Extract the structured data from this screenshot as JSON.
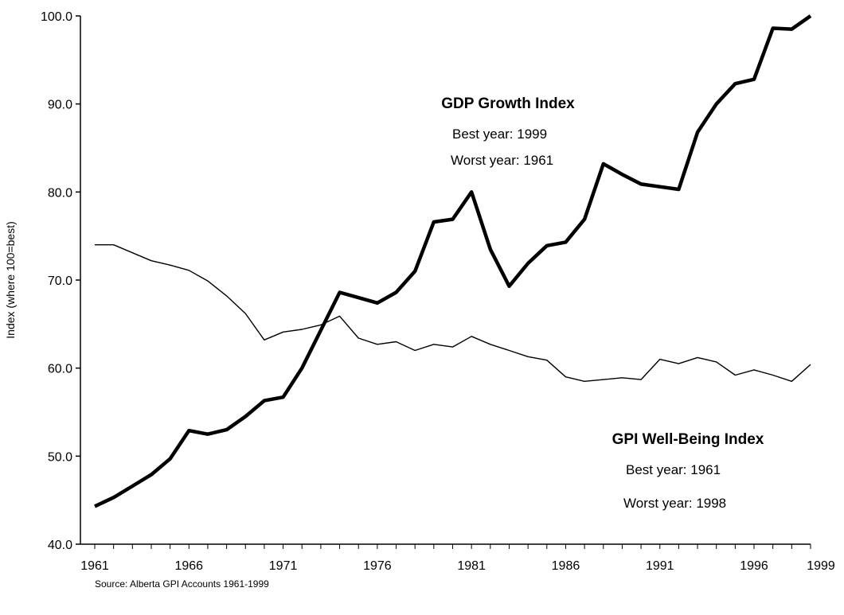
{
  "chart_data": {
    "type": "line",
    "title": "",
    "xlabel": "",
    "ylabel": "Index (where 100=best)",
    "ylim": [
      40,
      100
    ],
    "xlim": [
      1961,
      1999
    ],
    "y_ticks": [
      "40.0",
      "50.0",
      "60.0",
      "70.0",
      "80.0",
      "90.0",
      "100.0"
    ],
    "x_ticks": [
      "1961",
      "1966",
      "1971",
      "1976",
      "1981",
      "1986",
      "1991",
      "1996",
      "1999"
    ],
    "grid": false,
    "legend": "none",
    "x": [
      1961,
      1962,
      1963,
      1964,
      1965,
      1966,
      1967,
      1968,
      1969,
      1970,
      1971,
      1972,
      1973,
      1974,
      1975,
      1976,
      1977,
      1978,
      1979,
      1980,
      1981,
      1982,
      1983,
      1984,
      1985,
      1986,
      1987,
      1988,
      1989,
      1990,
      1991,
      1992,
      1993,
      1994,
      1995,
      1996,
      1997,
      1998,
      1999
    ],
    "series": [
      {
        "name": "GDP Growth Index",
        "style": "thick",
        "values": [
          44.3,
          45.3,
          46.6,
          47.9,
          49.7,
          52.9,
          52.5,
          53.0,
          54.5,
          56.3,
          56.7,
          60.0,
          64.3,
          68.6,
          68.0,
          67.4,
          68.6,
          71.0,
          76.6,
          76.9,
          80.0,
          73.5,
          69.3,
          71.9,
          73.9,
          74.3,
          76.9,
          83.2,
          82.0,
          80.9,
          80.6,
          80.3,
          86.8,
          90.0,
          92.3,
          92.8,
          98.6,
          98.5,
          100.0
        ]
      },
      {
        "name": "GPI Well-Being Index",
        "style": "thin",
        "values": [
          74.0,
          74.0,
          73.1,
          72.2,
          71.7,
          71.1,
          69.9,
          68.2,
          66.2,
          63.2,
          64.1,
          64.4,
          64.9,
          65.9,
          63.4,
          62.7,
          63.0,
          62.0,
          62.7,
          62.4,
          63.6,
          62.7,
          62.0,
          61.3,
          60.9,
          59.0,
          58.5,
          58.7,
          58.9,
          58.7,
          61.0,
          60.5,
          61.2,
          60.7,
          59.2,
          59.8,
          59.2,
          58.5,
          60.4
        ]
      }
    ],
    "annotations": {
      "gdp": {
        "heading": "GDP Growth Index",
        "best": "Best year: 1999",
        "worst": "Worst year: 1961"
      },
      "gpi": {
        "heading": "GPI Well-Being Index",
        "best": "Best year: 1961",
        "worst": "Worst year: 1998"
      }
    },
    "source": "Source: Alberta GPI Accounts 1961-1999"
  }
}
